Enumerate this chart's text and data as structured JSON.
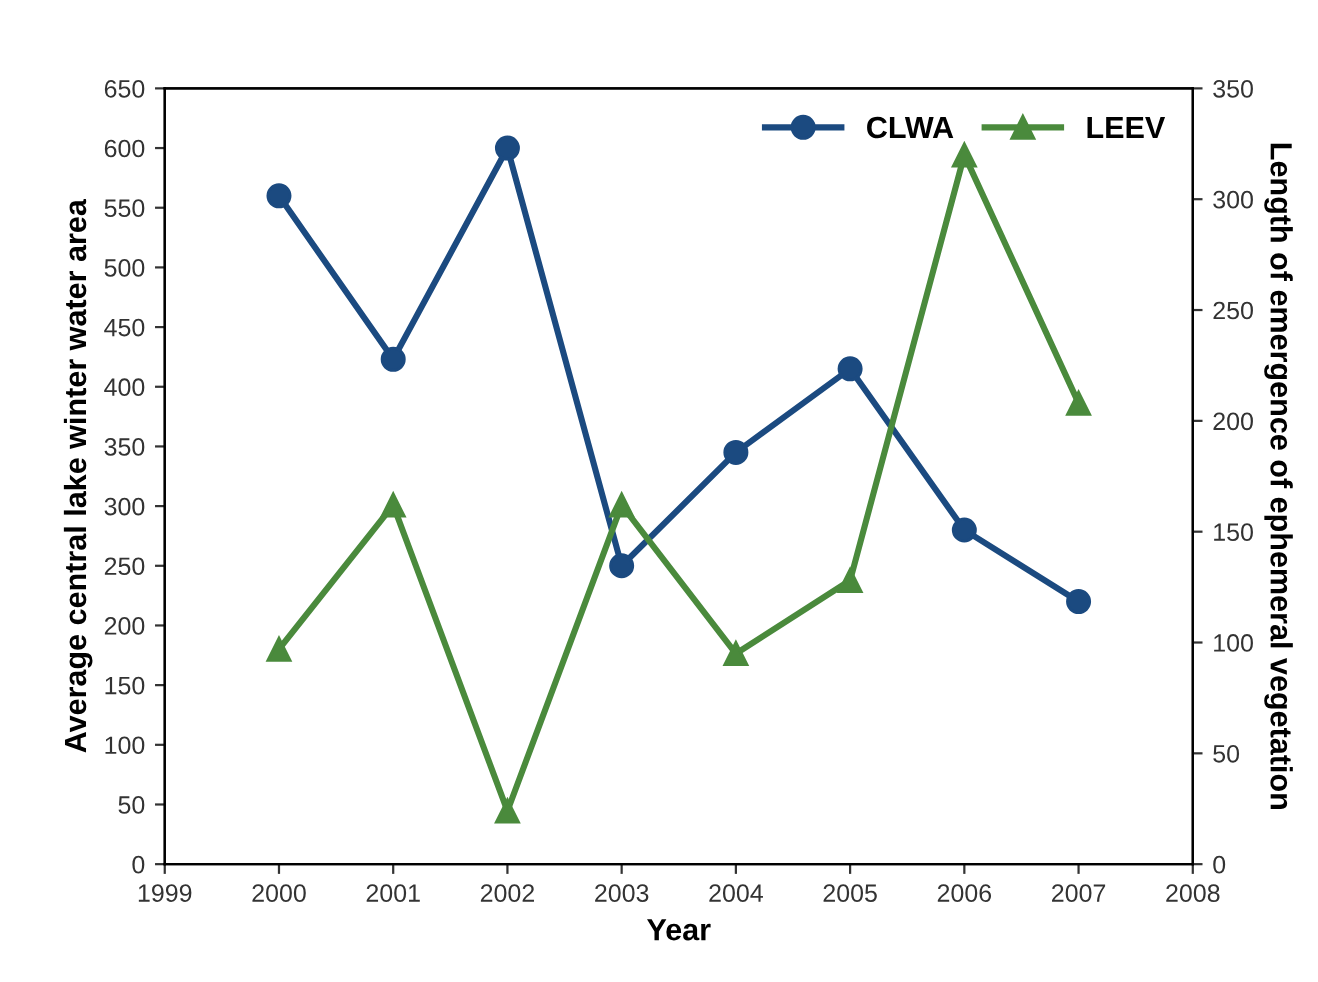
{
  "chart_data": {
    "type": "line",
    "xlabel": "Year",
    "ylabel": "Average central lake winter water area",
    "y2label": "Length of emergence of ephemeral vegetation",
    "x": [
      2000,
      2001,
      2002,
      2003,
      2004,
      2005,
      2006,
      2007
    ],
    "series": [
      {
        "name": "CLWA",
        "color": "#1b4a80",
        "marker": "circle",
        "values": [
          560,
          423,
          600,
          250,
          345,
          415,
          280,
          220
        ]
      },
      {
        "name": "LEEV",
        "color": "#4a8a3c",
        "marker": "triangle",
        "axis": "y2",
        "values": [
          97,
          162,
          24,
          162,
          95,
          128,
          320,
          208
        ]
      }
    ],
    "xlim": [
      1999,
      2008
    ],
    "xticks": [
      1999,
      2000,
      2001,
      2002,
      2003,
      2004,
      2005,
      2006,
      2007,
      2008
    ],
    "ylim": [
      0,
      650
    ],
    "yticks": [
      0,
      50,
      100,
      150,
      200,
      250,
      300,
      350,
      400,
      450,
      500,
      550,
      600,
      650
    ],
    "y2lim": [
      0,
      350
    ],
    "y2ticks": [
      0,
      50,
      100,
      150,
      200,
      250,
      300,
      350
    ],
    "legend": "top right",
    "grid": false,
    "line_style": "solid"
  }
}
